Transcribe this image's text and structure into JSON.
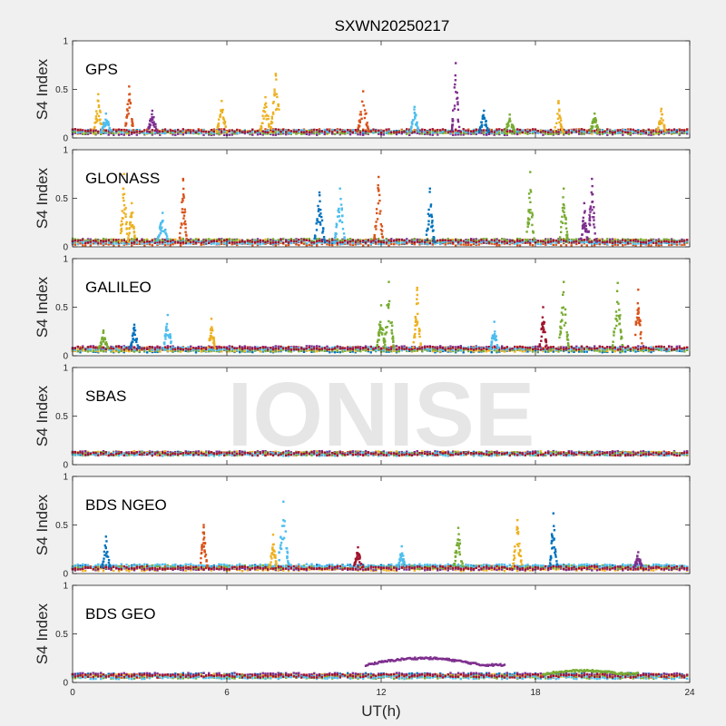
{
  "chart_data": {
    "type": "scatter",
    "title": "SXWN20250217",
    "xlabel": "UT(h)",
    "ylabel": "S4 Index",
    "xlim": [
      0,
      24
    ],
    "xticks": [
      0,
      6,
      12,
      18,
      24
    ],
    "ylim": [
      0,
      1
    ],
    "yticks": [
      0,
      0.5,
      1
    ],
    "ytick_labels": [
      "0",
      "0.5",
      "1"
    ],
    "grid": false,
    "watermark": "IONISE",
    "series_colors": [
      "#0072BD",
      "#D95319",
      "#EDB120",
      "#7E2F8E",
      "#77AC30",
      "#4DBEEE",
      "#A2142F"
    ],
    "panels": [
      {
        "name": "GPS",
        "baseline": 0.06,
        "spikes": [
          {
            "x": 1.0,
            "peak": 0.45,
            "color": 2
          },
          {
            "x": 1.3,
            "peak": 0.25,
            "color": 5
          },
          {
            "x": 2.2,
            "peak": 0.53,
            "color": 1
          },
          {
            "x": 3.1,
            "peak": 0.28,
            "color": 3
          },
          {
            "x": 5.8,
            "peak": 0.38,
            "color": 2
          },
          {
            "x": 7.5,
            "peak": 0.42,
            "color": 2
          },
          {
            "x": 7.9,
            "peak": 0.66,
            "color": 2
          },
          {
            "x": 11.3,
            "peak": 0.48,
            "color": 1
          },
          {
            "x": 13.3,
            "peak": 0.32,
            "color": 5
          },
          {
            "x": 14.9,
            "peak": 0.77,
            "color": 3
          },
          {
            "x": 16.0,
            "peak": 0.28,
            "color": 0
          },
          {
            "x": 17.0,
            "peak": 0.24,
            "color": 4
          },
          {
            "x": 18.9,
            "peak": 0.38,
            "color": 2
          },
          {
            "x": 20.3,
            "peak": 0.25,
            "color": 4
          },
          {
            "x": 22.9,
            "peak": 0.3,
            "color": 2
          }
        ]
      },
      {
        "name": "GLONASS",
        "baseline": 0.05,
        "spikes": [
          {
            "x": 2.0,
            "peak": 0.75,
            "color": 2
          },
          {
            "x": 2.3,
            "peak": 0.45,
            "color": 2
          },
          {
            "x": 3.5,
            "peak": 0.35,
            "color": 5
          },
          {
            "x": 4.3,
            "peak": 0.7,
            "color": 1
          },
          {
            "x": 9.6,
            "peak": 0.56,
            "color": 0
          },
          {
            "x": 10.4,
            "peak": 0.6,
            "color": 5
          },
          {
            "x": 11.9,
            "peak": 0.72,
            "color": 1
          },
          {
            "x": 13.9,
            "peak": 0.6,
            "color": 0
          },
          {
            "x": 17.8,
            "peak": 0.77,
            "color": 4
          },
          {
            "x": 19.1,
            "peak": 0.6,
            "color": 4
          },
          {
            "x": 19.9,
            "peak": 0.45,
            "color": 3
          },
          {
            "x": 20.2,
            "peak": 0.7,
            "color": 3
          }
        ]
      },
      {
        "name": "GALILEO",
        "baseline": 0.07,
        "spikes": [
          {
            "x": 1.2,
            "peak": 0.26,
            "color": 4
          },
          {
            "x": 2.4,
            "peak": 0.32,
            "color": 0
          },
          {
            "x": 3.7,
            "peak": 0.42,
            "color": 5
          },
          {
            "x": 5.4,
            "peak": 0.38,
            "color": 2
          },
          {
            "x": 12.0,
            "peak": 0.52,
            "color": 4
          },
          {
            "x": 12.3,
            "peak": 0.76,
            "color": 4
          },
          {
            "x": 13.4,
            "peak": 0.7,
            "color": 2
          },
          {
            "x": 16.4,
            "peak": 0.35,
            "color": 5
          },
          {
            "x": 18.3,
            "peak": 0.5,
            "color": 6
          },
          {
            "x": 19.1,
            "peak": 0.76,
            "color": 4
          },
          {
            "x": 21.2,
            "peak": 0.75,
            "color": 4
          },
          {
            "x": 22.0,
            "peak": 0.68,
            "color": 1
          }
        ]
      },
      {
        "name": "SBAS",
        "baseline": 0.12,
        "spikes": []
      },
      {
        "name": "BDS NGEO",
        "baseline": 0.06,
        "spikes": [
          {
            "x": 1.3,
            "peak": 0.38,
            "color": 0
          },
          {
            "x": 5.1,
            "peak": 0.5,
            "color": 1
          },
          {
            "x": 7.8,
            "peak": 0.4,
            "color": 2
          },
          {
            "x": 8.2,
            "peak": 0.74,
            "color": 5
          },
          {
            "x": 11.1,
            "peak": 0.27,
            "color": 6
          },
          {
            "x": 12.8,
            "peak": 0.28,
            "color": 5
          },
          {
            "x": 15.0,
            "peak": 0.47,
            "color": 4
          },
          {
            "x": 17.3,
            "peak": 0.55,
            "color": 2
          },
          {
            "x": 18.7,
            "peak": 0.62,
            "color": 0
          },
          {
            "x": 22.0,
            "peak": 0.22,
            "color": 3
          }
        ]
      },
      {
        "name": "BDS GEO",
        "baseline": 0.07,
        "spikes": [],
        "arcs": [
          {
            "x0": 11.4,
            "x1": 16.8,
            "peak": 0.25,
            "base": 0.18,
            "color": 3
          },
          {
            "x0": 18.3,
            "x1": 22.0,
            "peak": 0.12,
            "base": 0.09,
            "color": 4
          }
        ]
      }
    ]
  }
}
